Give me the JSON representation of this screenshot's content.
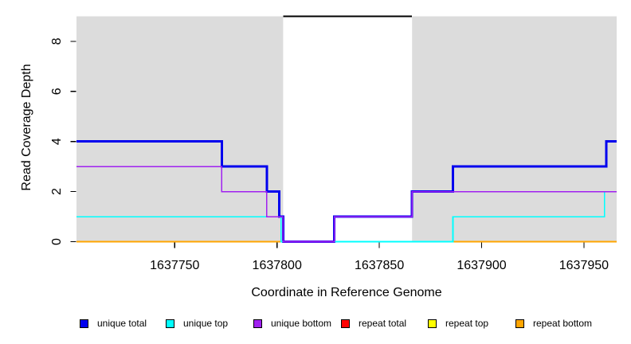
{
  "chart_data": {
    "type": "line",
    "subtype": "step",
    "title": "",
    "xlabel": "Coordinate in Reference Genome",
    "ylabel": "Read Coverage Depth",
    "xlim": [
      1637702,
      1637966
    ],
    "ylim": [
      0,
      9
    ],
    "x_ticks": [
      1637750,
      1637800,
      1637850,
      1637900,
      1637950
    ],
    "y_ticks": [
      0,
      2,
      4,
      6,
      8
    ],
    "grid": false,
    "legend_position": "bottom",
    "axis_color": "#000000",
    "unique_region_color": "#DCDCDC",
    "unique_regions": [
      [
        1637702,
        1637803
      ],
      [
        1637866,
        1637966
      ]
    ],
    "repeat_region": {
      "span": [
        1637803,
        1637866
      ],
      "marker_y": 9,
      "marker_color": "#000000"
    },
    "draw_order": [
      "repeat total",
      "repeat top",
      "repeat bottom",
      "unique total",
      "unique top",
      "unique bottom"
    ],
    "series": [
      {
        "name": "unique total",
        "color": "#0000EE",
        "width": 3,
        "steps": [
          [
            1637702,
            4
          ],
          [
            1637773,
            3
          ],
          [
            1637795,
            2
          ],
          [
            1637801,
            1
          ],
          [
            1637803,
            0
          ],
          [
            1637828,
            1
          ],
          [
            1637866,
            2
          ],
          [
            1637886,
            3
          ],
          [
            1637961,
            4
          ]
        ]
      },
      {
        "name": "unique top",
        "color": "#00FFFF",
        "width": 1.6,
        "steps": [
          [
            1637702,
            1
          ],
          [
            1637802,
            0
          ],
          [
            1637886,
            1
          ],
          [
            1637960,
            2
          ]
        ]
      },
      {
        "name": "unique bottom",
        "color": "#A020F0",
        "width": 1.6,
        "steps": [
          [
            1637702,
            3
          ],
          [
            1637773,
            2
          ],
          [
            1637795,
            1
          ],
          [
            1637803,
            0
          ],
          [
            1637828,
            1
          ],
          [
            1637866,
            2
          ]
        ]
      },
      {
        "name": "repeat total",
        "color": "#FF0000",
        "width": 1.6,
        "steps": [
          [
            1637702,
            0
          ]
        ]
      },
      {
        "name": "repeat top",
        "color": "#FFFF00",
        "width": 1.6,
        "steps": [
          [
            1637702,
            0
          ]
        ]
      },
      {
        "name": "repeat bottom",
        "color": "#FFA500",
        "width": 1.6,
        "steps": [
          [
            1637702,
            0
          ]
        ]
      }
    ],
    "legend": [
      {
        "label": "unique total",
        "color": "#0000EE"
      },
      {
        "label": "unique top",
        "color": "#00FFFF"
      },
      {
        "label": "unique bottom",
        "color": "#A020F0"
      },
      {
        "label": "repeat total",
        "color": "#FF0000"
      },
      {
        "label": "repeat top",
        "color": "#FFFF00"
      },
      {
        "label": "repeat bottom",
        "color": "#FFA500"
      }
    ]
  }
}
